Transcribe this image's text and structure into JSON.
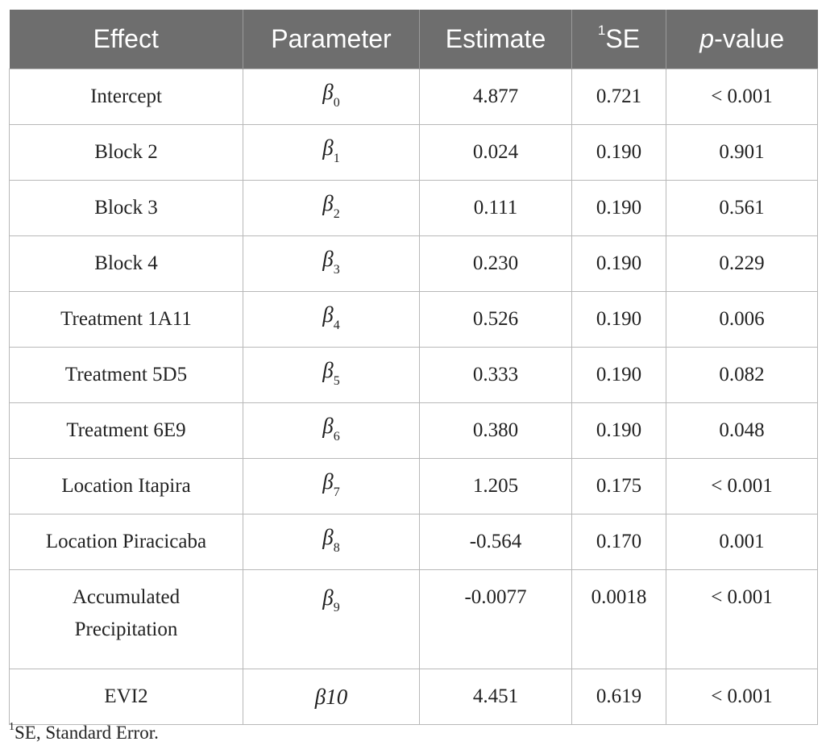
{
  "table": {
    "headers": {
      "effect": "Effect",
      "parameter": "Parameter",
      "estimate": "Estimate",
      "se_sup": "1",
      "se": "SE",
      "pvalue_italic": "p",
      "pvalue_rest": "-value"
    },
    "rows": [
      {
        "effect": "Intercept",
        "param_symbol": "β",
        "param_sub": "0",
        "estimate": "4.877",
        "se": "0.721",
        "pvalue": "< 0.001"
      },
      {
        "effect": "Block 2",
        "param_symbol": "β",
        "param_sub": "1",
        "estimate": "0.024",
        "se": "0.190",
        "pvalue": "0.901"
      },
      {
        "effect": "Block 3",
        "param_symbol": "β",
        "param_sub": "2",
        "estimate": "0.111",
        "se": "0.190",
        "pvalue": "0.561"
      },
      {
        "effect": "Block 4",
        "param_symbol": "β",
        "param_sub": "3",
        "estimate": "0.230",
        "se": "0.190",
        "pvalue": "0.229"
      },
      {
        "effect": "Treatment 1A11",
        "param_symbol": "β",
        "param_sub": "4",
        "estimate": "0.526",
        "se": "0.190",
        "pvalue": "0.006"
      },
      {
        "effect": "Treatment 5D5",
        "param_symbol": "β",
        "param_sub": "5",
        "estimate": "0.333",
        "se": "0.190",
        "pvalue": "0.082"
      },
      {
        "effect": "Treatment 6E9",
        "param_symbol": "β",
        "param_sub": "6",
        "estimate": "0.380",
        "se": "0.190",
        "pvalue": "0.048"
      },
      {
        "effect": "Location Itapira",
        "param_symbol": "β",
        "param_sub": "7",
        "estimate": "1.205",
        "se": "0.175",
        "pvalue": "< 0.001"
      },
      {
        "effect": "Location Piracicaba",
        "param_symbol": "β",
        "param_sub": "8",
        "estimate": "-0.564",
        "se": "0.170",
        "pvalue": "0.001"
      },
      {
        "effect_line1": "Accumulated",
        "effect_line2": "Precipitation",
        "param_symbol": "β",
        "param_sub": "9",
        "estimate": "-0.0077",
        "se": "0.0018",
        "pvalue": "< 0.001"
      },
      {
        "effect": "EVI2",
        "param_full": "β10",
        "estimate": "4.451",
        "se": "0.619",
        "pvalue": "< 0.001"
      }
    ]
  },
  "footnote": {
    "marker": "1",
    "text": "SE, Standard Error."
  },
  "colors": {
    "header_bg": "#6e6e6e",
    "header_text": "#ffffff",
    "grid": "#b8b8b8"
  }
}
